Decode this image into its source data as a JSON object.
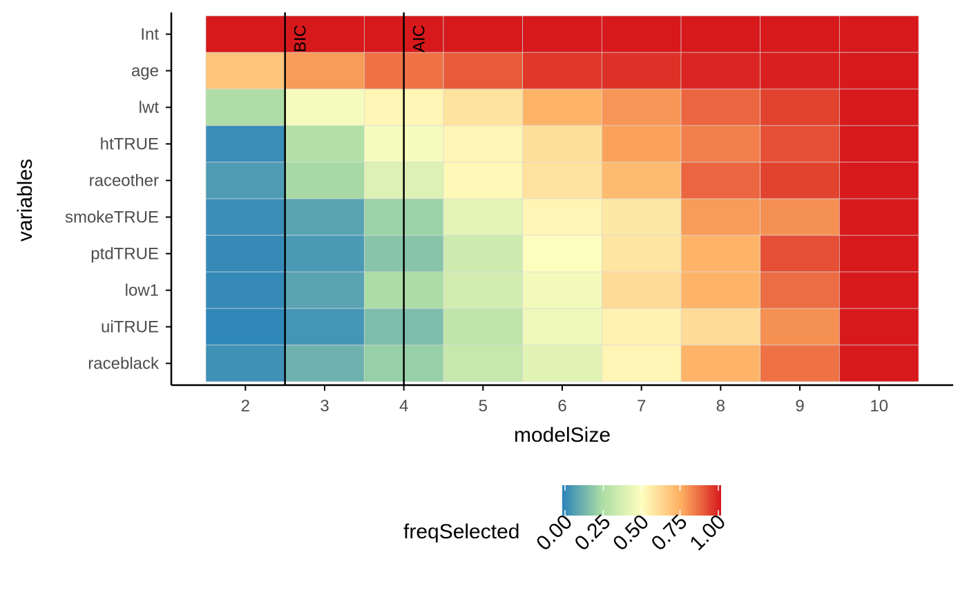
{
  "chart_data": {
    "type": "heatmap",
    "title": "",
    "xlabel": "modelSize",
    "ylabel": "variables",
    "x": [
      2,
      3,
      4,
      5,
      6,
      7,
      8,
      9,
      10
    ],
    "y": [
      "Int",
      "age",
      "lwt",
      "htTRUE",
      "raceother",
      "smokeTRUE",
      "ptdTRUE",
      "low1",
      "uiTRUE",
      "raceblack"
    ],
    "values": [
      [
        1.0,
        1.0,
        1.0,
        1.0,
        1.0,
        1.0,
        1.0,
        1.0,
        1.0
      ],
      [
        0.68,
        0.78,
        0.85,
        0.89,
        0.95,
        0.96,
        0.98,
        0.99,
        1.0
      ],
      [
        0.26,
        0.47,
        0.53,
        0.59,
        0.73,
        0.79,
        0.87,
        0.93,
        1.0
      ],
      [
        0.03,
        0.27,
        0.47,
        0.53,
        0.6,
        0.77,
        0.83,
        0.91,
        1.0
      ],
      [
        0.07,
        0.24,
        0.4,
        0.52,
        0.59,
        0.71,
        0.87,
        0.93,
        1.0
      ],
      [
        0.03,
        0.09,
        0.22,
        0.42,
        0.53,
        0.57,
        0.78,
        0.8,
        1.0
      ],
      [
        0.02,
        0.06,
        0.18,
        0.35,
        0.49,
        0.58,
        0.73,
        0.91,
        1.0
      ],
      [
        0.02,
        0.09,
        0.25,
        0.37,
        0.46,
        0.61,
        0.73,
        0.86,
        1.0
      ],
      [
        0.01,
        0.05,
        0.16,
        0.31,
        0.45,
        0.54,
        0.61,
        0.8,
        1.0
      ],
      [
        0.04,
        0.13,
        0.21,
        0.33,
        0.41,
        0.53,
        0.73,
        0.85,
        1.0
      ]
    ],
    "reference_lines": [
      {
        "label": "BIC",
        "x": 2.5
      },
      {
        "label": "AIC",
        "x": 4
      }
    ],
    "legend": {
      "title": "freqSelected",
      "ticks": [
        "0.00",
        "0.25",
        "0.50",
        "0.75",
        "1.00"
      ],
      "tick_values": [
        0,
        0.25,
        0.5,
        0.75,
        1
      ],
      "placement": "bottom",
      "palette": [
        "#2b83ba",
        "#abdda4",
        "#ffffbf",
        "#fdae61",
        "#d7191c"
      ]
    },
    "xlim": [
      1.5,
      10.5
    ],
    "grid": false
  }
}
